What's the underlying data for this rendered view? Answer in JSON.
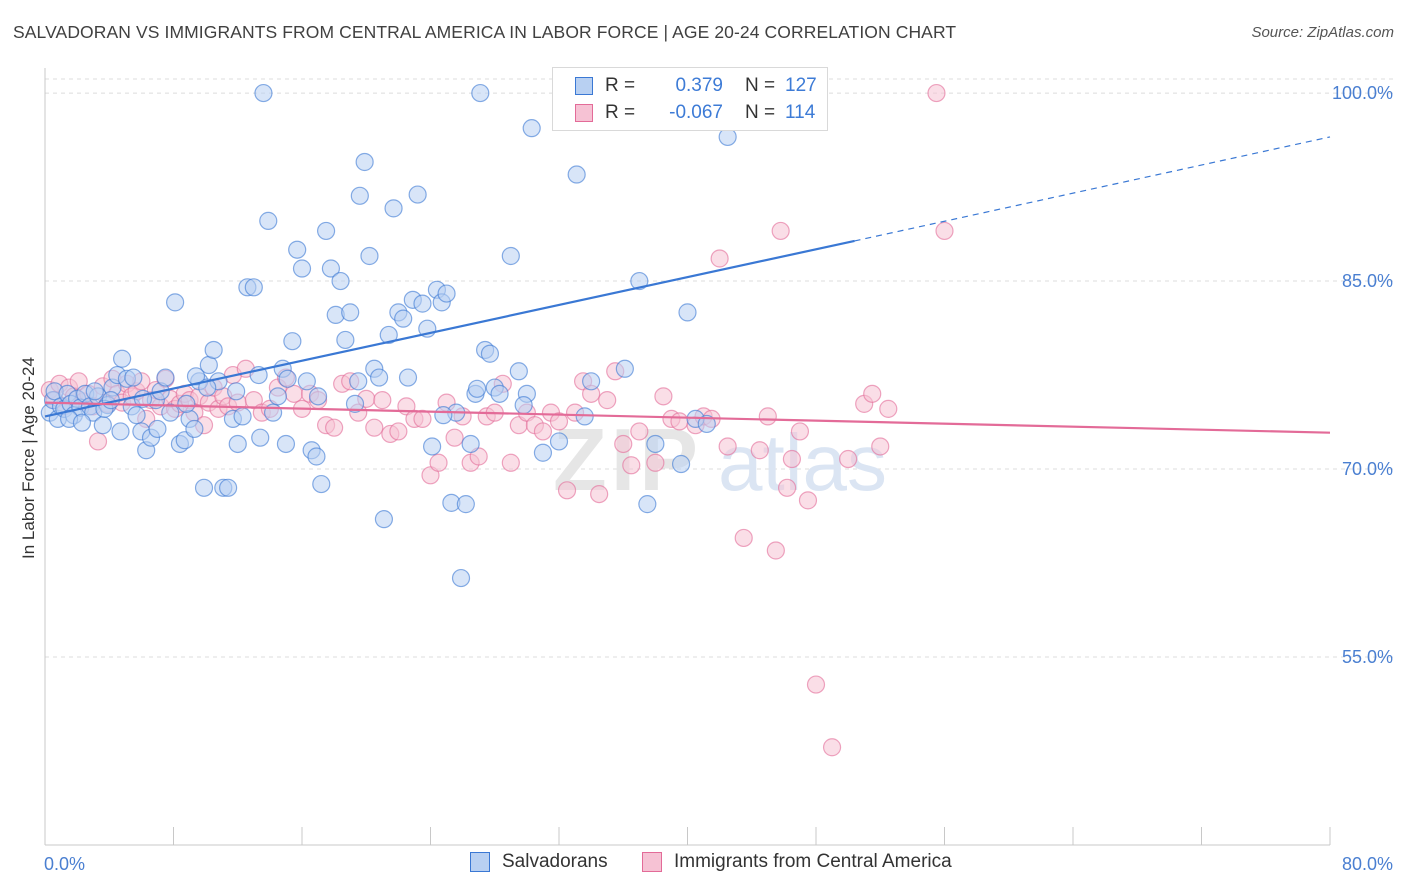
{
  "title": "SALVADORAN VS IMMIGRANTS FROM CENTRAL AMERICA IN LABOR FORCE | AGE 20-24 CORRELATION CHART",
  "source": "Source: ZipAtlas.com",
  "colors": {
    "blue": "#3a78d4",
    "blue_fill": "#b8d0f2",
    "pink": "#e36b98",
    "pink_fill": "#f6c2d4",
    "tick_text": "#4a7fd1",
    "grid": "#dcdcdc"
  },
  "legend": {
    "r_label": "R =",
    "n_label": "N =",
    "rows": [
      {
        "r": "0.379",
        "n": "127"
      },
      {
        "r": "-0.067",
        "n": "114"
      }
    ]
  },
  "bottom_legend": [
    "Salvadorans",
    "Immigrants from Central America"
  ],
  "chart_data": {
    "type": "scatter",
    "ylabel": "In Labor Force | Age 20-24",
    "xlim": [
      0,
      80
    ],
    "ylim": [
      40,
      102
    ],
    "x_tick_labels": [
      {
        "value": 0,
        "label": "0.0%"
      },
      {
        "value": 80,
        "label": "80.0%"
      }
    ],
    "y_tick_labels": [
      {
        "value": 100,
        "label": "100.0%"
      },
      {
        "value": 85,
        "label": "85.0%"
      },
      {
        "value": 70,
        "label": "70.0%"
      },
      {
        "value": 55,
        "label": "55.0%"
      }
    ],
    "series": [
      {
        "name": "Salvadorans",
        "trend": {
          "x1": 0,
          "y1": 74.2,
          "x2": 50.4,
          "y2": 88.2,
          "dash_to_x": 80,
          "dash_to_y": 96.5
        },
        "points": [
          [
            0.3,
            74.5
          ],
          [
            0.5,
            75.5
          ],
          [
            0.6,
            76.2
          ],
          [
            0.8,
            74.0
          ],
          [
            1.0,
            75.0
          ],
          [
            1.2,
            74.8
          ],
          [
            1.4,
            76.0
          ],
          [
            1.6,
            75.2
          ],
          [
            1.8,
            74.3
          ],
          [
            2.0,
            75.6
          ],
          [
            2.2,
            74.9
          ],
          [
            2.5,
            76.0
          ],
          [
            2.8,
            75.0
          ],
          [
            3.0,
            74.5
          ],
          [
            3.3,
            75.8
          ],
          [
            3.6,
            73.5
          ],
          [
            3.9,
            75.1
          ],
          [
            4.2,
            76.5
          ],
          [
            4.5,
            77.5
          ],
          [
            4.8,
            78.8
          ],
          [
            5.1,
            77.2
          ],
          [
            5.4,
            75.0
          ],
          [
            5.7,
            74.3
          ],
          [
            6.0,
            73.0
          ],
          [
            6.3,
            71.5
          ],
          [
            6.6,
            72.5
          ],
          [
            6.9,
            75.5
          ],
          [
            7.2,
            76.2
          ],
          [
            7.5,
            77.3
          ],
          [
            7.8,
            74.5
          ],
          [
            8.1,
            83.3
          ],
          [
            8.4,
            72.0
          ],
          [
            8.7,
            72.3
          ],
          [
            9.0,
            74.0
          ],
          [
            9.3,
            73.2
          ],
          [
            9.6,
            77.0
          ],
          [
            9.9,
            68.5
          ],
          [
            10.2,
            78.3
          ],
          [
            10.5,
            79.5
          ],
          [
            10.8,
            77.0
          ],
          [
            11.1,
            68.5
          ],
          [
            11.4,
            68.5
          ],
          [
            11.7,
            74.0
          ],
          [
            12.0,
            72.0
          ],
          [
            12.3,
            74.2
          ],
          [
            12.6,
            84.5
          ],
          [
            13.0,
            84.5
          ],
          [
            13.3,
            77.5
          ],
          [
            13.6,
            100.0
          ],
          [
            13.9,
            89.8
          ],
          [
            14.2,
            74.5
          ],
          [
            14.5,
            75.8
          ],
          [
            14.8,
            78.0
          ],
          [
            15.1,
            77.2
          ],
          [
            15.4,
            80.2
          ],
          [
            15.7,
            87.5
          ],
          [
            16.0,
            86.0
          ],
          [
            16.3,
            77.0
          ],
          [
            16.6,
            71.5
          ],
          [
            16.9,
            71.0
          ],
          [
            17.2,
            68.8
          ],
          [
            17.5,
            89.0
          ],
          [
            17.8,
            86.0
          ],
          [
            18.1,
            82.3
          ],
          [
            18.4,
            85.0
          ],
          [
            18.7,
            80.3
          ],
          [
            19.0,
            82.5
          ],
          [
            19.3,
            75.2
          ],
          [
            19.6,
            91.8
          ],
          [
            19.9,
            94.5
          ],
          [
            20.2,
            87.0
          ],
          [
            20.5,
            78.0
          ],
          [
            20.8,
            77.3
          ],
          [
            21.1,
            66.0
          ],
          [
            21.4,
            80.7
          ],
          [
            21.7,
            90.8
          ],
          [
            22.0,
            82.5
          ],
          [
            22.3,
            82.0
          ],
          [
            22.6,
            77.3
          ],
          [
            22.9,
            83.5
          ],
          [
            23.2,
            91.9
          ],
          [
            23.5,
            83.2
          ],
          [
            23.8,
            81.2
          ],
          [
            24.1,
            71.8
          ],
          [
            24.4,
            84.3
          ],
          [
            24.7,
            83.3
          ],
          [
            25.0,
            84.0
          ],
          [
            25.3,
            67.3
          ],
          [
            25.6,
            74.5
          ],
          [
            25.9,
            61.3
          ],
          [
            26.2,
            67.2
          ],
          [
            26.5,
            72.0
          ],
          [
            26.8,
            76.0
          ],
          [
            27.1,
            100.0
          ],
          [
            27.4,
            79.5
          ],
          [
            27.7,
            79.2
          ],
          [
            28.0,
            76.5
          ],
          [
            28.3,
            76.0
          ],
          [
            29.0,
            87.0
          ],
          [
            29.5,
            77.8
          ],
          [
            30.0,
            76.0
          ],
          [
            30.3,
            97.2
          ],
          [
            31.0,
            71.3
          ],
          [
            32.0,
            72.2
          ],
          [
            33.1,
            93.5
          ],
          [
            34.0,
            77.0
          ],
          [
            37.0,
            85.0
          ],
          [
            37.5,
            67.2
          ],
          [
            38.0,
            72.0
          ],
          [
            40.0,
            82.5
          ],
          [
            40.5,
            74.0
          ],
          [
            42.5,
            96.5
          ],
          [
            44.0,
            100.0
          ],
          [
            1.5,
            74.0
          ],
          [
            2.3,
            73.7
          ],
          [
            3.1,
            76.2
          ],
          [
            3.7,
            74.8
          ],
          [
            4.1,
            75.5
          ],
          [
            4.7,
            73.0
          ],
          [
            5.5,
            77.3
          ],
          [
            6.1,
            75.6
          ],
          [
            7.0,
            73.2
          ],
          [
            8.8,
            75.2
          ],
          [
            9.4,
            77.4
          ],
          [
            10.1,
            76.5
          ],
          [
            11.9,
            76.2
          ],
          [
            13.4,
            72.5
          ],
          [
            15.0,
            72.0
          ],
          [
            17.0,
            75.8
          ],
          [
            19.5,
            77.0
          ],
          [
            24.8,
            74.3
          ],
          [
            26.9,
            76.4
          ],
          [
            29.8,
            75.1
          ],
          [
            33.6,
            74.2
          ],
          [
            36.1,
            78.0
          ],
          [
            39.6,
            70.4
          ],
          [
            41.2,
            73.6
          ]
        ]
      },
      {
        "name": "Immigrants from Central America",
        "trend": {
          "x1": 0,
          "y1": 75.3,
          "x2": 80,
          "y2": 72.9
        },
        "points": [
          [
            0.3,
            76.3
          ],
          [
            0.6,
            75.5
          ],
          [
            0.9,
            76.8
          ],
          [
            1.2,
            75.0
          ],
          [
            1.5,
            76.5
          ],
          [
            1.8,
            75.8
          ],
          [
            2.1,
            77.0
          ],
          [
            2.4,
            75.4
          ],
          [
            2.7,
            76.0
          ],
          [
            3.0,
            75.0
          ],
          [
            3.3,
            72.2
          ],
          [
            3.6,
            76.6
          ],
          [
            3.9,
            75.2
          ],
          [
            4.2,
            77.2
          ],
          [
            4.5,
            76.0
          ],
          [
            4.8,
            75.3
          ],
          [
            5.1,
            76.8
          ],
          [
            5.4,
            75.8
          ],
          [
            5.7,
            76.2
          ],
          [
            6.0,
            77.0
          ],
          [
            6.3,
            74.0
          ],
          [
            6.6,
            75.5
          ],
          [
            6.9,
            76.3
          ],
          [
            7.2,
            75.0
          ],
          [
            7.5,
            77.2
          ],
          [
            7.8,
            75.6
          ],
          [
            8.1,
            74.8
          ],
          [
            8.4,
            75.2
          ],
          [
            8.7,
            76.0
          ],
          [
            9.0,
            75.5
          ],
          [
            9.3,
            74.5
          ],
          [
            9.6,
            75.8
          ],
          [
            9.9,
            73.5
          ],
          [
            10.2,
            75.3
          ],
          [
            10.5,
            76.5
          ],
          [
            10.8,
            74.8
          ],
          [
            11.1,
            75.8
          ],
          [
            11.4,
            75.0
          ],
          [
            11.7,
            77.5
          ],
          [
            12.0,
            75.3
          ],
          [
            12.5,
            78.0
          ],
          [
            13.0,
            75.5
          ],
          [
            13.5,
            74.5
          ],
          [
            14.0,
            74.8
          ],
          [
            14.5,
            76.5
          ],
          [
            15.0,
            77.3
          ],
          [
            15.5,
            76.0
          ],
          [
            16.0,
            74.8
          ],
          [
            16.5,
            76.0
          ],
          [
            17.0,
            75.5
          ],
          [
            17.5,
            73.5
          ],
          [
            18.0,
            73.3
          ],
          [
            18.5,
            76.8
          ],
          [
            19.0,
            77.0
          ],
          [
            19.5,
            74.5
          ],
          [
            20.0,
            75.6
          ],
          [
            20.5,
            73.3
          ],
          [
            21.0,
            75.5
          ],
          [
            21.5,
            72.8
          ],
          [
            22.0,
            73.0
          ],
          [
            22.5,
            75.0
          ],
          [
            23.0,
            74.0
          ],
          [
            23.5,
            74.0
          ],
          [
            24.0,
            69.5
          ],
          [
            24.5,
            70.5
          ],
          [
            25.0,
            75.3
          ],
          [
            25.5,
            72.5
          ],
          [
            26.0,
            74.2
          ],
          [
            26.5,
            70.5
          ],
          [
            27.0,
            71.0
          ],
          [
            27.5,
            74.2
          ],
          [
            28.0,
            74.5
          ],
          [
            28.5,
            76.8
          ],
          [
            29.0,
            70.5
          ],
          [
            29.5,
            73.5
          ],
          [
            30.0,
            74.5
          ],
          [
            30.5,
            73.5
          ],
          [
            31.0,
            73.0
          ],
          [
            31.5,
            74.5
          ],
          [
            32.0,
            73.8
          ],
          [
            32.5,
            68.3
          ],
          [
            33.0,
            74.5
          ],
          [
            33.5,
            77.0
          ],
          [
            34.0,
            76.0
          ],
          [
            34.5,
            68.0
          ],
          [
            35.0,
            75.5
          ],
          [
            35.5,
            77.8
          ],
          [
            36.0,
            72.0
          ],
          [
            36.5,
            70.3
          ],
          [
            37.0,
            73.0
          ],
          [
            38.0,
            70.5
          ],
          [
            38.5,
            75.8
          ],
          [
            39.0,
            74.0
          ],
          [
            39.5,
            73.8
          ],
          [
            40.5,
            73.5
          ],
          [
            41.0,
            74.2
          ],
          [
            41.5,
            74.0
          ],
          [
            42.0,
            86.8
          ],
          [
            42.5,
            71.8
          ],
          [
            43.5,
            64.5
          ],
          [
            44.5,
            71.5
          ],
          [
            45.0,
            74.2
          ],
          [
            45.5,
            63.5
          ],
          [
            45.8,
            89.0
          ],
          [
            46.2,
            68.5
          ],
          [
            46.5,
            70.8
          ],
          [
            47.0,
            73.0
          ],
          [
            47.5,
            67.5
          ],
          [
            48.0,
            52.8
          ],
          [
            49.0,
            47.8
          ],
          [
            50.0,
            70.8
          ],
          [
            51.0,
            75.2
          ],
          [
            51.5,
            76.0
          ],
          [
            52.0,
            71.8
          ],
          [
            52.5,
            74.8
          ],
          [
            55.5,
            100.0
          ],
          [
            56.0,
            89.0
          ]
        ]
      }
    ]
  }
}
